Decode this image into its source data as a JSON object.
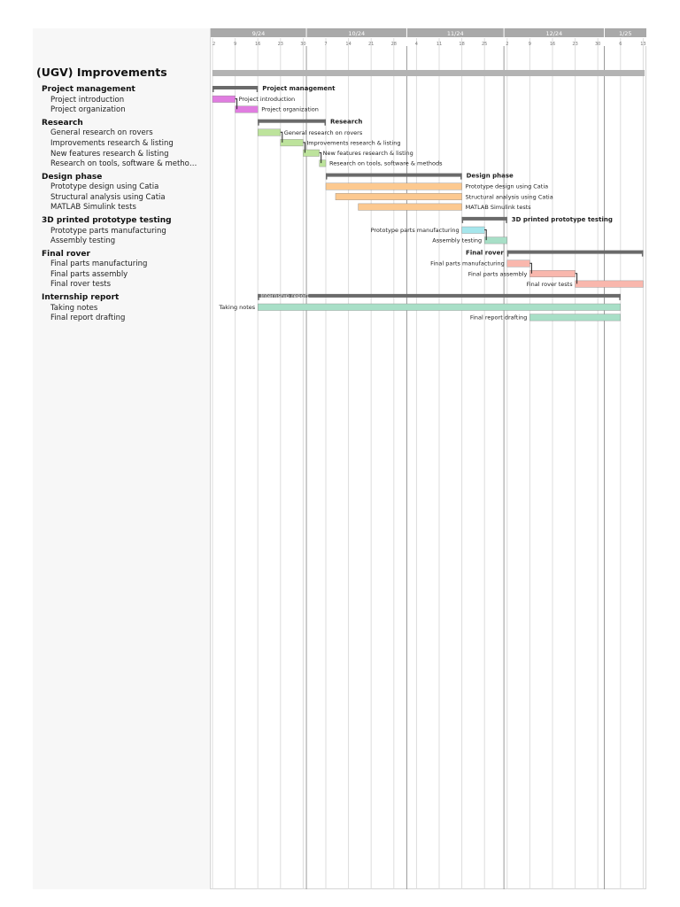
{
  "project": {
    "title": "(UGV) Improvements"
  },
  "timeline": {
    "months": [
      {
        "label": "9/24",
        "start": "2024-09-01"
      },
      {
        "label": "10/24",
        "start": "2024-10-01"
      },
      {
        "label": "11/24",
        "start": "2024-11-01"
      },
      {
        "label": "12/24",
        "start": "2024-12-01"
      },
      {
        "label": "1/25",
        "start": "2025-01-01"
      }
    ],
    "week_ticks": [
      {
        "label": "2",
        "date": "2024-09-02"
      },
      {
        "label": "9",
        "date": "2024-09-09"
      },
      {
        "label": "16",
        "date": "2024-09-16"
      },
      {
        "label": "23",
        "date": "2024-09-23"
      },
      {
        "label": "30",
        "date": "2024-09-30"
      },
      {
        "label": "7",
        "date": "2024-10-07"
      },
      {
        "label": "14",
        "date": "2024-10-14"
      },
      {
        "label": "21",
        "date": "2024-10-21"
      },
      {
        "label": "28",
        "date": "2024-10-28"
      },
      {
        "label": "4",
        "date": "2024-11-04"
      },
      {
        "label": "11",
        "date": "2024-11-11"
      },
      {
        "label": "18",
        "date": "2024-11-18"
      },
      {
        "label": "25",
        "date": "2024-11-25"
      },
      {
        "label": "2",
        "date": "2024-12-02"
      },
      {
        "label": "9",
        "date": "2024-12-09"
      },
      {
        "label": "16",
        "date": "2024-12-16"
      },
      {
        "label": "23",
        "date": "2024-12-23"
      },
      {
        "label": "30",
        "date": "2024-12-30"
      },
      {
        "label": "6",
        "date": "2025-01-06"
      },
      {
        "label": "13",
        "date": "2025-01-13"
      }
    ]
  },
  "groups": [
    {
      "name": "Project management",
      "start": "2024-09-02",
      "end": "2024-09-16",
      "color": "#e07de0",
      "tasks": [
        {
          "name": "Project introduction",
          "start": "2024-09-02",
          "end": "2024-09-09"
        },
        {
          "name": "Project organization",
          "start": "2024-09-09",
          "end": "2024-09-16"
        }
      ]
    },
    {
      "name": "Research",
      "start": "2024-09-16",
      "end": "2024-10-07",
      "color": "#bde39c",
      "tasks": [
        {
          "name": "General research on rovers",
          "start": "2024-09-16",
          "end": "2024-09-23"
        },
        {
          "name": "Improvements research & listing",
          "start": "2024-09-23",
          "end": "2024-09-30"
        },
        {
          "name": "New features research & listing",
          "start": "2024-09-30",
          "end": "2024-10-05"
        },
        {
          "name": "Research on tools, software & methods",
          "list_label": "Research on tools, software & metho…",
          "start": "2024-10-05",
          "end": "2024-10-07"
        }
      ]
    },
    {
      "name": "Design phase",
      "start": "2024-10-07",
      "end": "2024-11-18",
      "color": "#fcc990",
      "tasks": [
        {
          "name": "Prototype design using Catia",
          "start": "2024-10-07",
          "end": "2024-11-18"
        },
        {
          "name": "Structural analysis using Catia",
          "start": "2024-10-10",
          "end": "2024-11-18"
        },
        {
          "name": "MATLAB Simulink tests",
          "start": "2024-10-17",
          "end": "2024-11-18"
        }
      ]
    },
    {
      "name": "3D printed prototype testing",
      "start": "2024-11-18",
      "end": "2024-12-02",
      "color": "#a6e6ec",
      "tasks": [
        {
          "name": "Prototype parts manufacturing",
          "start": "2024-11-18",
          "end": "2024-11-25",
          "label_side": "left"
        },
        {
          "name": "Assembly testing",
          "start": "2024-11-25",
          "end": "2024-12-02",
          "label_side": "left",
          "color": "#a8dfc7"
        }
      ]
    },
    {
      "name": "Final rover",
      "start": "2024-12-02",
      "end": "2025-01-13",
      "color": "#f9b7ad",
      "label_side": "left",
      "tasks": [
        {
          "name": "Final parts manufacturing",
          "start": "2024-12-02",
          "end": "2024-12-09",
          "label_side": "left"
        },
        {
          "name": "Final parts assembly",
          "start": "2024-12-09",
          "end": "2024-12-23",
          "label_side": "left"
        },
        {
          "name": "Final rover tests",
          "start": "2024-12-23",
          "end": "2025-01-13",
          "label_side": "left"
        }
      ]
    },
    {
      "name": "Internship report",
      "start": "2024-09-16",
      "end": "2025-01-06",
      "color": "#a8dfc7",
      "label_side": "inside",
      "tasks": [
        {
          "name": "Taking notes",
          "start": "2024-09-16",
          "end": "2025-01-06",
          "label_side": "left"
        },
        {
          "name": "Final report drafting",
          "start": "2024-12-09",
          "end": "2025-01-06",
          "label_side": "left"
        }
      ]
    }
  ],
  "colors": {
    "summary_bar": "#6a6a6a",
    "project_bar": "#b3b3b3",
    "header_bg": "#a9a9a9",
    "grid_week": "#dddddd",
    "grid_month": "#9a9a9a"
  }
}
